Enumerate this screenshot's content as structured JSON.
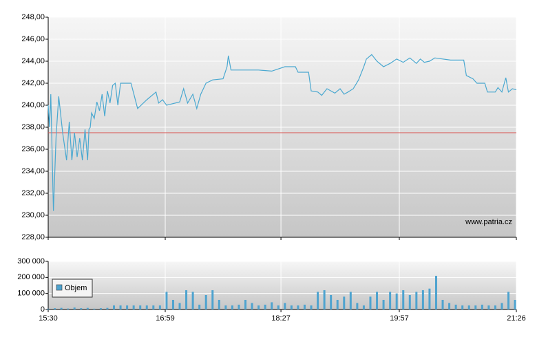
{
  "chart_data": [
    {
      "type": "line",
      "color": "#4aa8d0",
      "x": [
        930,
        931,
        932,
        934,
        936,
        938,
        941,
        944,
        946,
        948,
        950,
        952,
        954,
        956,
        958,
        960,
        961,
        962,
        963,
        965,
        967,
        969,
        971,
        973,
        975,
        977,
        979,
        981,
        983,
        985,
        993,
        998,
        1005,
        1012,
        1014,
        1017,
        1020,
        1030,
        1033,
        1036,
        1040,
        1043,
        1046,
        1050,
        1055,
        1063,
        1066,
        1067,
        1069,
        1090,
        1100,
        1110,
        1118,
        1120,
        1128,
        1130,
        1135,
        1138,
        1142,
        1148,
        1152,
        1155,
        1158,
        1162,
        1166,
        1170,
        1172,
        1176,
        1180,
        1185,
        1190,
        1195,
        1200,
        1205,
        1210,
        1213,
        1216,
        1220,
        1224,
        1236,
        1246,
        1248,
        1253,
        1256,
        1262,
        1264,
        1270,
        1272,
        1275,
        1278,
        1280,
        1283,
        1286
      ],
      "values": [
        240,
        238,
        241,
        230.4,
        237.2,
        240.8,
        237.5,
        235,
        238.5,
        235,
        237.5,
        235.3,
        237,
        235,
        237.8,
        235,
        237.8,
        238,
        239.3,
        238.8,
        240.3,
        239.5,
        241,
        239,
        241.3,
        240.2,
        241.8,
        242,
        240,
        242,
        242,
        239.7,
        240.5,
        241.2,
        240.2,
        240.5,
        240,
        240.3,
        241.5,
        240.2,
        241,
        239.7,
        241,
        242,
        242.3,
        242.4,
        243.5,
        244.5,
        243.2,
        243.2,
        243.1,
        243.5,
        243.5,
        243,
        243,
        241.3,
        241.2,
        240.9,
        241.5,
        241.1,
        241.5,
        241,
        241.2,
        241.5,
        242.3,
        243.5,
        244.2,
        244.6,
        244,
        243.5,
        243.8,
        244.2,
        243.9,
        244.3,
        243.8,
        244.2,
        243.9,
        244,
        244.3,
        244.1,
        244.1,
        242.7,
        242.4,
        242,
        242,
        241.2,
        241.2,
        241.6,
        241.2,
        242.5,
        241.2,
        241.5,
        241.4
      ],
      "reference_line": 237.5,
      "reference_color": "#d9534f",
      "xlim": [
        930,
        1286
      ],
      "ylim": [
        228,
        248
      ],
      "yticks": [
        {
          "value": 228,
          "label": "228,00"
        },
        {
          "value": 230,
          "label": "230,00"
        },
        {
          "value": 232,
          "label": "232,00"
        },
        {
          "value": 234,
          "label": "234,00"
        },
        {
          "value": 236,
          "label": "236,00"
        },
        {
          "value": 238,
          "label": "238,00"
        },
        {
          "value": 240,
          "label": "240,00"
        },
        {
          "value": 242,
          "label": "242,00"
        },
        {
          "value": 244,
          "label": "244,00"
        },
        {
          "value": 246,
          "label": "246,00"
        },
        {
          "value": 248,
          "label": "248,00"
        }
      ],
      "xticks": [
        930,
        1019,
        1107,
        1197,
        1286
      ],
      "watermark": "www.patria.cz",
      "grid": true
    },
    {
      "type": "bar",
      "color": "#4ea3cf",
      "legend": "Objem",
      "x": [
        930,
        935,
        940,
        945,
        950,
        955,
        960,
        965,
        970,
        975,
        980,
        985,
        990,
        995,
        1000,
        1005,
        1010,
        1015,
        1020,
        1025,
        1030,
        1035,
        1040,
        1045,
        1050,
        1055,
        1060,
        1065,
        1070,
        1075,
        1080,
        1085,
        1090,
        1095,
        1100,
        1105,
        1110,
        1115,
        1120,
        1125,
        1130,
        1135,
        1140,
        1145,
        1150,
        1155,
        1160,
        1165,
        1170,
        1175,
        1180,
        1185,
        1190,
        1195,
        1200,
        1205,
        1210,
        1215,
        1220,
        1225,
        1230,
        1235,
        1240,
        1245,
        1250,
        1255,
        1260,
        1265,
        1270,
        1275,
        1280,
        1285
      ],
      "values": [
        5000,
        8000,
        10000,
        6000,
        12000,
        8000,
        10000,
        5000,
        8000,
        10000,
        25000,
        25000,
        25000,
        25000,
        25000,
        25000,
        25000,
        25000,
        110000,
        60000,
        40000,
        120000,
        110000,
        30000,
        90000,
        120000,
        60000,
        25000,
        25000,
        30000,
        60000,
        40000,
        25000,
        30000,
        45000,
        25000,
        40000,
        25000,
        25000,
        30000,
        25000,
        110000,
        120000,
        90000,
        60000,
        80000,
        110000,
        40000,
        25000,
        80000,
        110000,
        60000,
        110000,
        100000,
        120000,
        90000,
        110000,
        120000,
        130000,
        210000,
        60000,
        40000,
        30000,
        25000,
        25000,
        25000,
        30000,
        25000,
        25000,
        40000,
        110000,
        60000
      ],
      "xlim": [
        930,
        1286
      ],
      "ylim": [
        0,
        300000
      ],
      "yticks": [
        0,
        {
          "value": 100000,
          "label": "100 000"
        },
        {
          "value": 200000,
          "label": "200 000"
        },
        {
          "value": 300000,
          "label": "300 000"
        }
      ],
      "xticks": [
        {
          "value": 930,
          "label": "15:30"
        },
        {
          "value": 1019,
          "label": "16:59"
        },
        {
          "value": 1107,
          "label": "18:27"
        },
        {
          "value": 1197,
          "label": "19:57"
        },
        {
          "value": 1286,
          "label": "21:26"
        }
      ],
      "grid": true
    }
  ]
}
